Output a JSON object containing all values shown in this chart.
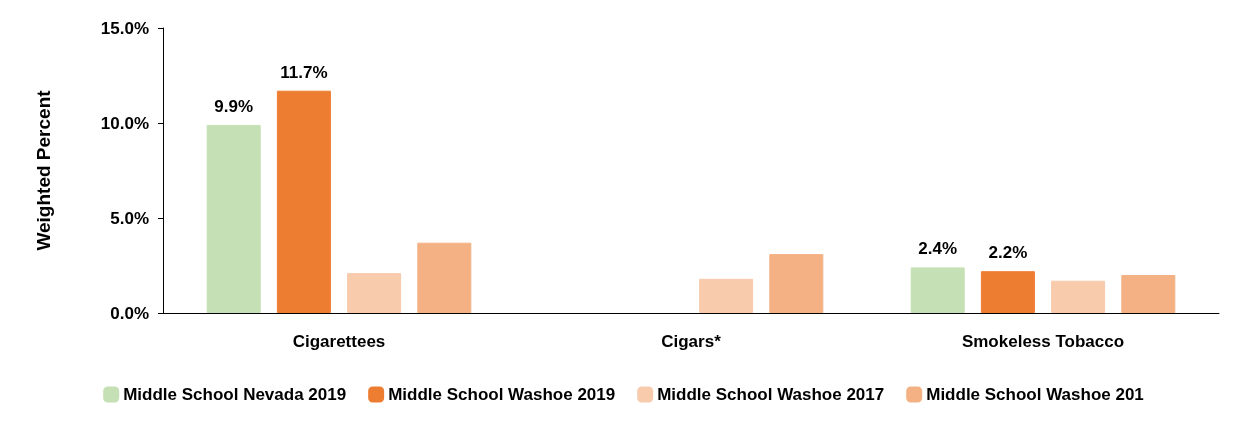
{
  "chart_data": {
    "type": "bar",
    "ylabel": "Weighted Percent",
    "categories": [
      "Cigarettees",
      "Cigars*",
      "Smokeless Tobacco"
    ],
    "series": [
      {
        "name": "Middle School Nevada 2019",
        "color": "#c5e0b4",
        "values": [
          9.9,
          null,
          2.4
        ],
        "value_labels": [
          "9.9%",
          null,
          "2.4%"
        ]
      },
      {
        "name": "Middle School Washoe 2019",
        "color": "#ed7d31",
        "values": [
          11.7,
          null,
          2.2
        ],
        "value_labels": [
          "11.7%",
          null,
          "2.2%"
        ]
      },
      {
        "name": "Middle School Washoe 2017",
        "color": "#f8cbad",
        "values": [
          2.1,
          1.8,
          1.7
        ]
      },
      {
        "name": "Middle School Washoe 201",
        "color": "#f4b183",
        "values": [
          3.7,
          3.1,
          2.0
        ]
      }
    ],
    "ylim": [
      0,
      15
    ],
    "yticks": [
      {
        "value": 0,
        "label": "0.0%"
      },
      {
        "value": 5,
        "label": "5.0%"
      },
      {
        "value": 10,
        "label": "10.0%"
      },
      {
        "value": 15,
        "label": "15.0%"
      }
    ],
    "grid": false,
    "legend": "bottom"
  }
}
